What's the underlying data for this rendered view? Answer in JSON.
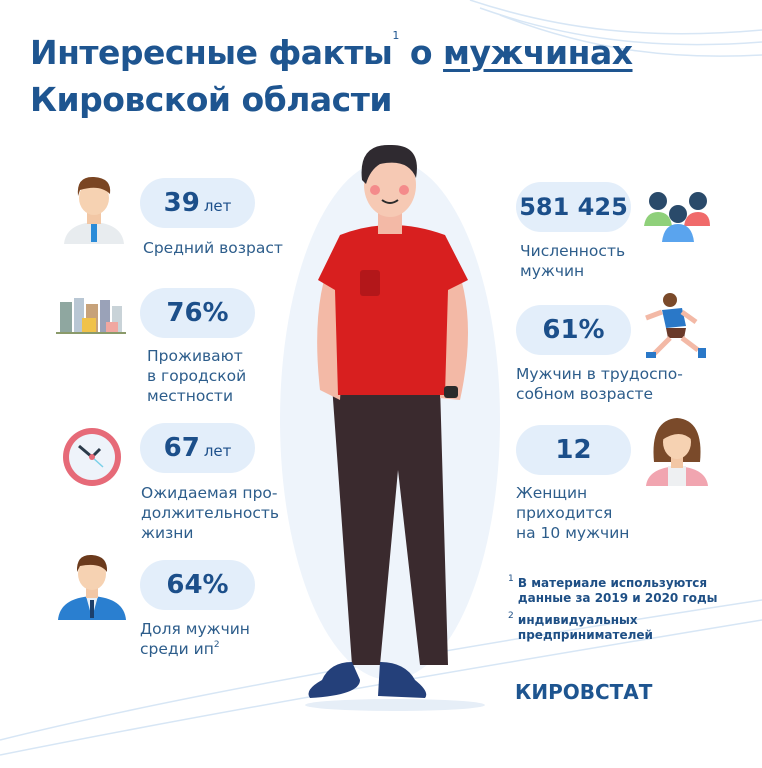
{
  "title": {
    "line1_prefix": "Интересные факты",
    "footnote_mark": "1",
    "line1_middle": " о ",
    "line1_underlined": "мужчинах",
    "line2": "Кировской области"
  },
  "left_facts": [
    {
      "value": "39",
      "unit": "лет",
      "label": [
        "Средний возраст"
      ],
      "icon": "man-office-icon"
    },
    {
      "value": "76%",
      "unit": "",
      "label": [
        "Проживают",
        "в городской",
        "местности"
      ],
      "icon": "city-icon"
    },
    {
      "value": "67",
      "unit": "лет",
      "label": [
        "Ожидаемая про-",
        "должительность",
        "жизни"
      ],
      "icon": "clock-icon"
    },
    {
      "value": "64%",
      "unit": "",
      "label": [
        "Доля мужчин",
        "среди ип"
      ],
      "label_sup": "2",
      "icon": "businessman-icon"
    }
  ],
  "right_facts": [
    {
      "value": "581 425",
      "label": [
        "Численность",
        "мужчин"
      ],
      "icon": "group-of-men-icon"
    },
    {
      "value": "61%",
      "label": [
        "Мужчин в трудоспо-",
        "собном возрасте"
      ],
      "icon": "runner-icon"
    },
    {
      "value": "12",
      "label": [
        "Женщин",
        "приходится",
        "на 10 мужчин"
      ],
      "icon": "woman-icon"
    }
  ],
  "footnotes": [
    {
      "mark": "1",
      "lines": [
        "В материале используются",
        "данные за 2019 и 2020 годы"
      ]
    },
    {
      "mark": "2",
      "lines": [
        "индивидуальных",
        "предпринимателей"
      ]
    }
  ],
  "brand": "КИРОВСТАТ",
  "colors": {
    "title": "#1e5590",
    "pill": "#e3eefa",
    "shirt": "#d81f1f",
    "pants": "#3a2a2e"
  }
}
